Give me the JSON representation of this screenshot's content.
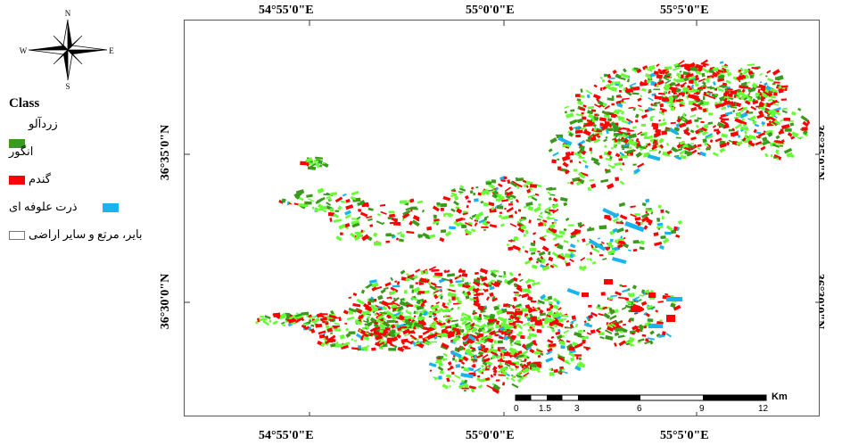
{
  "north_arrow": {
    "icon": "compass-rose-icon",
    "labels": {
      "n": "N",
      "s": "S",
      "e": "E",
      "w": "W"
    }
  },
  "legend": {
    "title": "Class",
    "items": [
      {
        "label": "زردآلو",
        "color": "#3a9a1c"
      },
      {
        "label": "انگور",
        "color": "#66ff33"
      },
      {
        "label": "گندم",
        "color": "#ff0000"
      },
      {
        "label": "ذرت علوفه ای",
        "color": "#19b4ee"
      },
      {
        "label": "بایر، مرتع و سایر اراضی",
        "color": "#ffffff"
      }
    ]
  },
  "coordinates": {
    "top": [
      "54°55'0\"E",
      "55°0'0\"E",
      "55°5'0\"E"
    ],
    "bottom": [
      "54°55'0\"E",
      "55°0'0\"E",
      "55°5'0\"E"
    ],
    "left": [
      "36°35'0\"N",
      "36°30'0\"N"
    ],
    "right": [
      "36°35'0\"N",
      "36°30'0\"N"
    ]
  },
  "scale_bar": {
    "unit": "Km",
    "ticks": [
      "0",
      "1.5",
      "3",
      "6",
      "9",
      "12"
    ]
  },
  "map": {
    "class_colors": {
      "apricot": "#3a9a1c",
      "grape": "#66ff33",
      "wheat": "#ff0000",
      "maize": "#19b4ee"
    }
  }
}
